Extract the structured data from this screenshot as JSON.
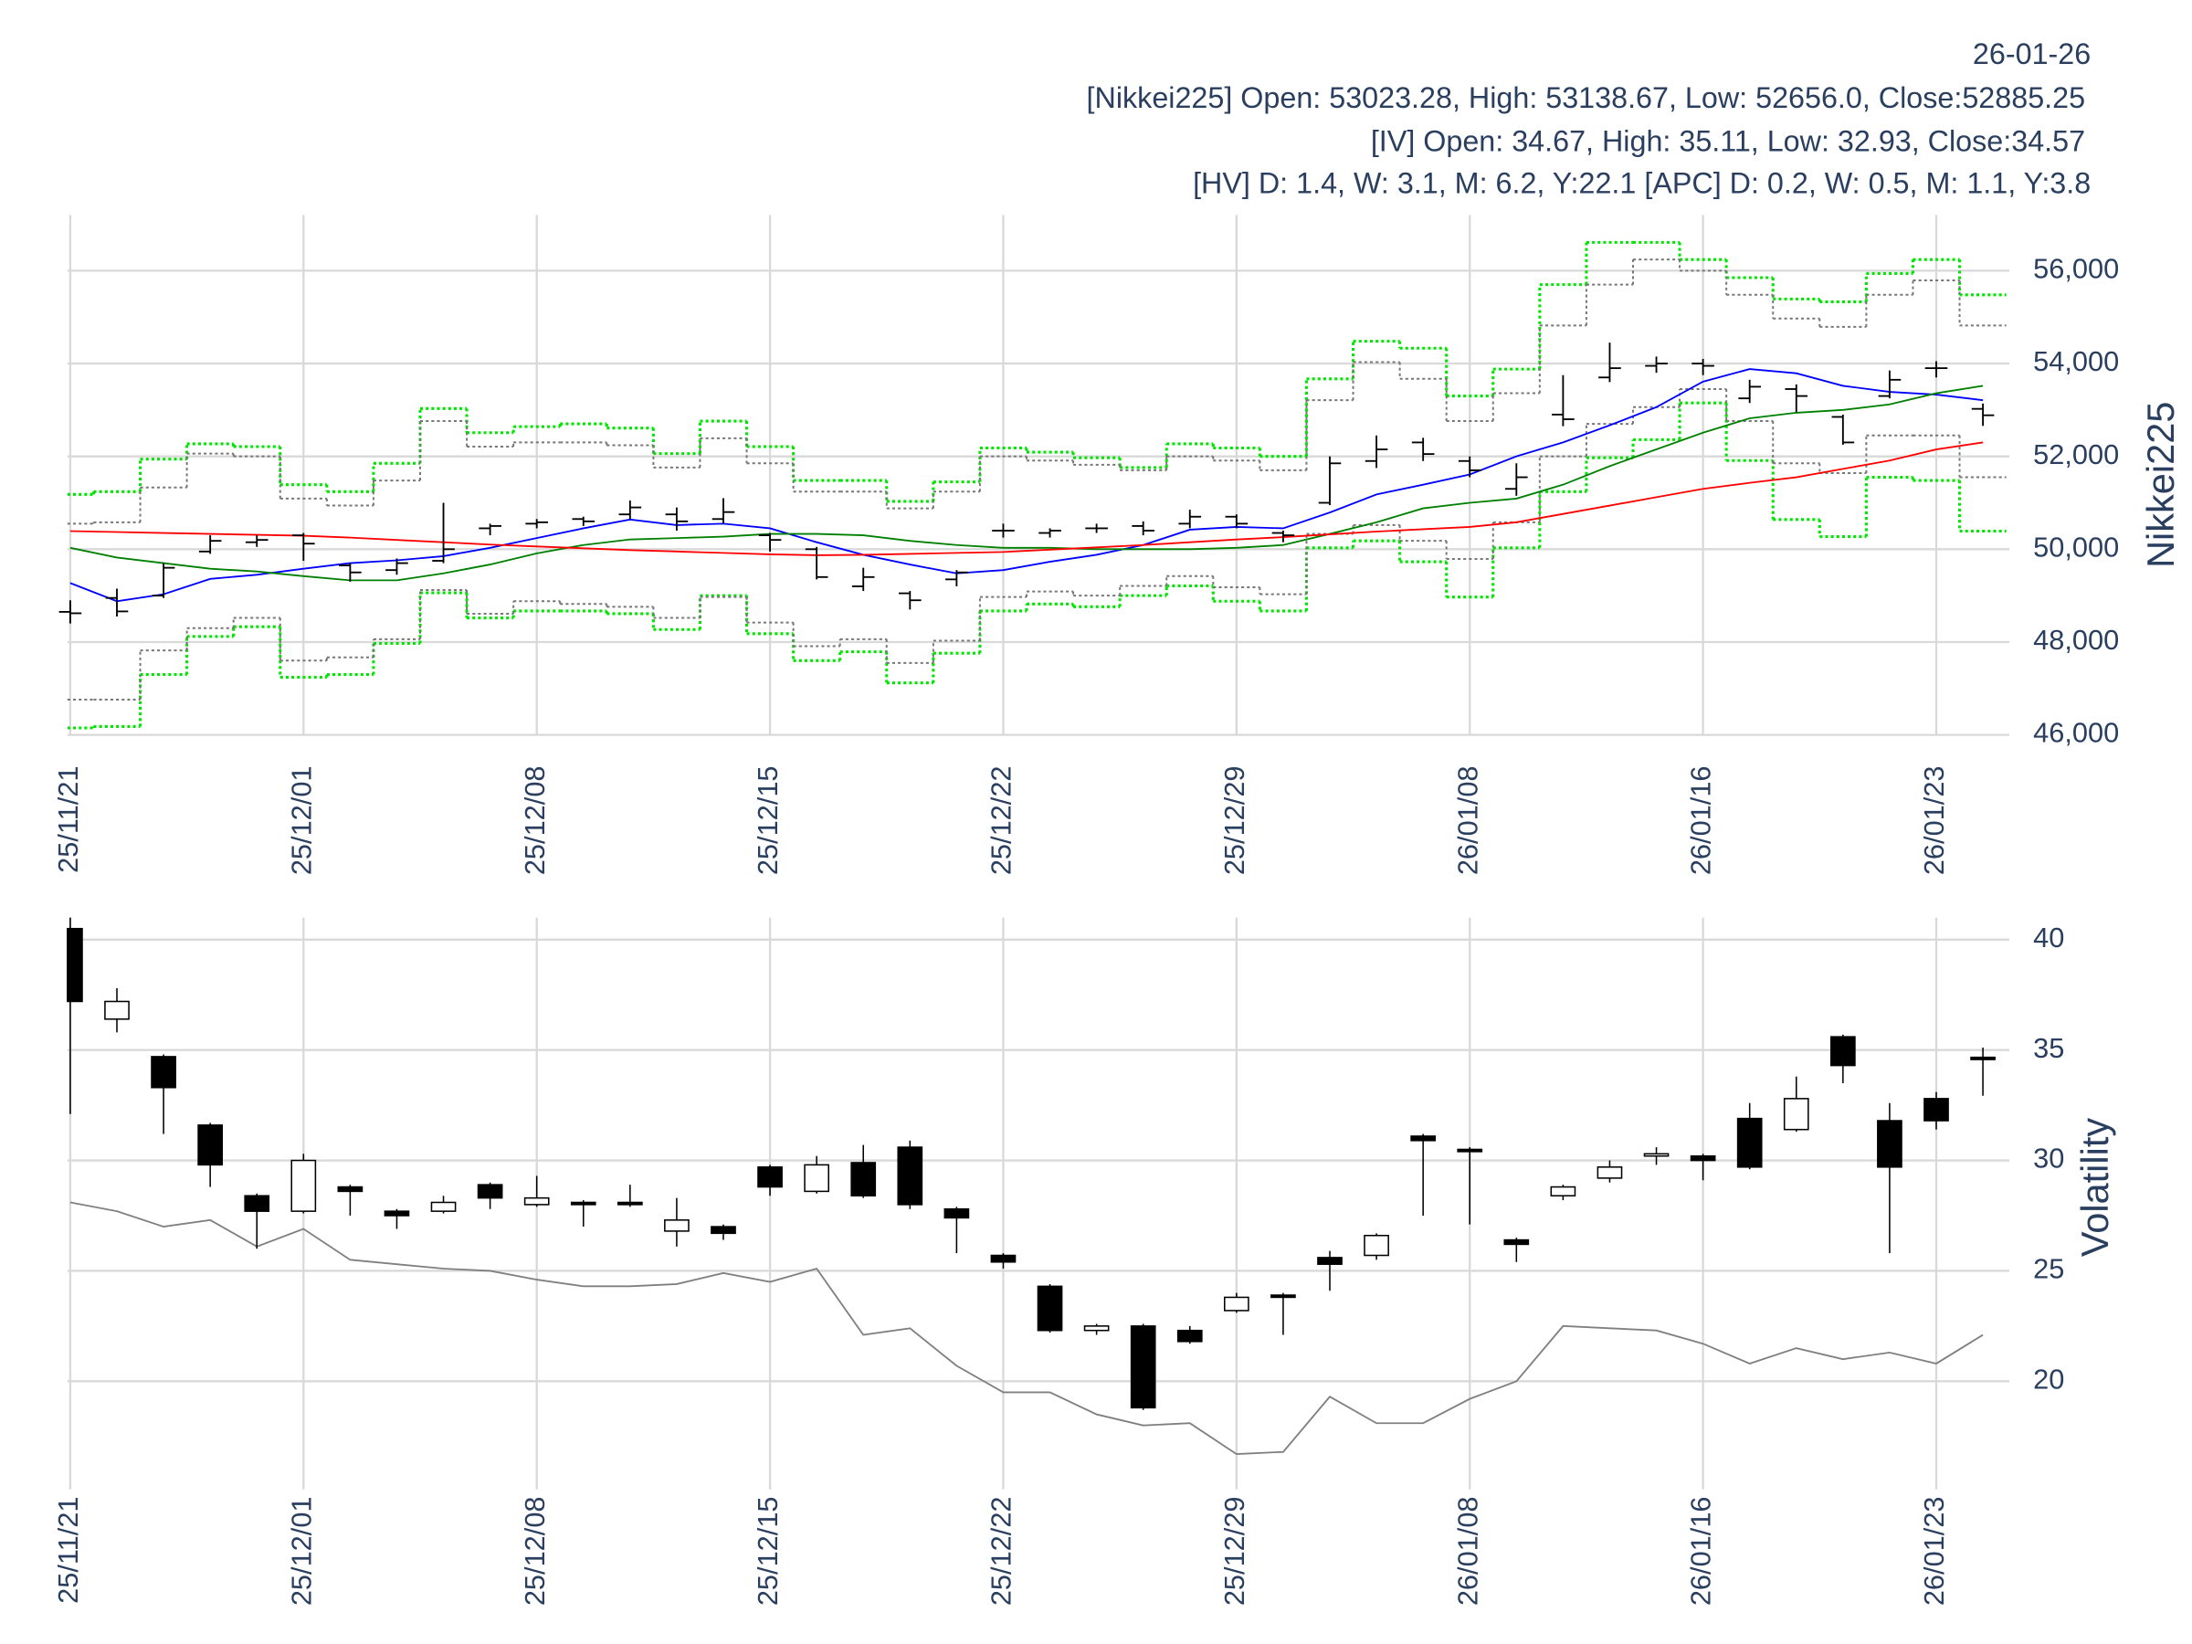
{
  "chart_data": [
    {
      "type": "ohlc",
      "title": "26-01-26",
      "annotations": [
        "[Nikkei225] Open: 53023.28, High: 53138.67, Low: 52656.0, Close:52885.25",
        "[IV] Open: 34.67, High: 35.11, Low: 32.93, Close:34.57",
        "[HV] D: 1.4, W: 3.1, M: 6.2, Y:22.1 [APC] D: 0.2, W: 0.5, M: 1.1, Y:3.8"
      ],
      "y_label": "Nikkei225",
      "categories": [
        "25/11/21",
        null,
        null,
        null,
        null,
        "25/12/01",
        null,
        null,
        null,
        null,
        "25/12/08",
        null,
        null,
        null,
        null,
        "25/12/15",
        null,
        null,
        null,
        null,
        "25/12/22",
        null,
        null,
        null,
        null,
        "25/12/29",
        null,
        null,
        null,
        null,
        "26/01/08",
        null,
        null,
        null,
        null,
        "26/01/16",
        null,
        null,
        null,
        null,
        "26/01/23",
        null
      ],
      "open": [
        48650,
        48950,
        49000,
        49950,
        50150,
        50300,
        49650,
        49550,
        49750,
        50450,
        50550,
        50650,
        50750,
        50750,
        50650,
        50300,
        50000,
        49200,
        49050,
        49350,
        50400,
        50350,
        50450,
        50500,
        50550,
        50700,
        50350,
        51000,
        51900,
        52300,
        51900,
        51300,
        52900,
        53700,
        53950,
        54000,
        53250,
        53450,
        52850,
        53300,
        53900,
        53023.28
      ],
      "high": [
        48900,
        49150,
        49700,
        50300,
        50300,
        50350,
        49700,
        49800,
        51000,
        50550,
        50650,
        50700,
        51050,
        50900,
        51100,
        50350,
        50050,
        49600,
        49100,
        49550,
        50550,
        50450,
        50550,
        50600,
        50850,
        50750,
        50400,
        52000,
        52450,
        52400,
        52000,
        51850,
        53750,
        54450,
        54150,
        54100,
        53650,
        53550,
        52900,
        53850,
        54050,
        53138.67
      ],
      "low": [
        48400,
        48550,
        48950,
        49900,
        50050,
        49750,
        49300,
        49450,
        49700,
        50300,
        50450,
        50500,
        50650,
        50400,
        50550,
        49950,
        49350,
        49100,
        48700,
        49200,
        50250,
        50250,
        50350,
        50300,
        50450,
        50450,
        50150,
        50950,
        51750,
        51900,
        51550,
        51150,
        52650,
        53600,
        53800,
        53750,
        53150,
        52950,
        52250,
        53250,
        53700,
        52656
      ],
      "close": [
        48620,
        48660,
        49600,
        50180,
        50200,
        50120,
        49500,
        49700,
        50000,
        50500,
        50580,
        50600,
        50900,
        50600,
        50800,
        50200,
        49400,
        49400,
        48900,
        49500,
        50400,
        50400,
        50450,
        50400,
        50700,
        50550,
        50300,
        51850,
        52150,
        52050,
        51700,
        51550,
        52800,
        53900,
        54000,
        53950,
        53500,
        53300,
        52300,
        53650,
        53900,
        52885.25
      ],
      "color": "#000000",
      "lines": [
        {
          "color": "#0000ff",
          "values": [
            49270,
            48880,
            49030,
            49360,
            49450,
            49580,
            49700,
            49760,
            49850,
            50030,
            50240,
            50450,
            50640,
            50520,
            50550,
            50450,
            50150,
            49880,
            49670,
            49480,
            49550,
            49730,
            49880,
            50090,
            50420,
            50480,
            50450,
            50790,
            51180,
            51390,
            51610,
            52000,
            52300,
            52670,
            53060,
            53610,
            53880,
            53790,
            53520,
            53390,
            53330,
            53210
          ]
        },
        {
          "color": "#008000",
          "values": [
            50030,
            49820,
            49700,
            49580,
            49520,
            49420,
            49330,
            49330,
            49480,
            49670,
            49910,
            50090,
            50210,
            50240,
            50270,
            50330,
            50330,
            50300,
            50180,
            50090,
            50030,
            50030,
            50000,
            50000,
            50000,
            50030,
            50090,
            50330,
            50580,
            50880,
            51000,
            51090,
            51390,
            51790,
            52150,
            52510,
            52820,
            52940,
            53000,
            53120,
            53360,
            53520
          ]
        },
        {
          "color": "#ff0000",
          "values": [
            50390,
            50370,
            50350,
            50330,
            50310,
            50290,
            50250,
            50200,
            50150,
            50100,
            50060,
            50020,
            49980,
            49950,
            49920,
            49890,
            49870,
            49880,
            49900,
            49920,
            49940,
            49990,
            50040,
            50090,
            50150,
            50210,
            50260,
            50320,
            50380,
            50430,
            50480,
            50580,
            50760,
            50940,
            51120,
            51300,
            51430,
            51550,
            51730,
            51910,
            52150,
            52300
          ]
        }
      ],
      "bands": [
        {
          "color": "#00e600",
          "values": [
            51180,
            51240,
            51940,
            52270,
            52210,
            51390,
            51240,
            51850,
            53030,
            52510,
            52640,
            52700,
            52610,
            52060,
            52760,
            52210,
            51480,
            51480,
            51030,
            51450,
            52180,
            52090,
            51970,
            51760,
            52270,
            52180,
            52000,
            53670,
            54480,
            54330,
            53300,
            53880,
            55700,
            56610,
            56610,
            56240,
            55850,
            55390,
            55330,
            55940,
            56240,
            55480
          ]
        },
        {
          "color": "#00e600",
          "values": [
            46150,
            46180,
            47300,
            48120,
            48330,
            47240,
            47300,
            47970,
            49060,
            48520,
            48670,
            48670,
            48610,
            48270,
            49000,
            48180,
            47600,
            47790,
            47120,
            47760,
            48670,
            48820,
            48760,
            49000,
            49210,
            48880,
            48670,
            50030,
            50180,
            49730,
            48970,
            50030,
            51240,
            51970,
            52360,
            53150,
            51910,
            50640,
            50270,
            51550,
            51480,
            50390
          ]
        },
        {
          "color": "#777777",
          "values": [
            50550,
            50580,
            51330,
            52060,
            52000,
            51090,
            50940,
            51480,
            52760,
            52210,
            52300,
            52300,
            52240,
            51760,
            52390,
            51850,
            51240,
            51240,
            50880,
            51240,
            52000,
            51910,
            51820,
            51700,
            52000,
            51910,
            51700,
            53210,
            54030,
            53670,
            52760,
            53360,
            54820,
            55700,
            56240,
            56000,
            55480,
            54970,
            54790,
            55480,
            55790,
            54820
          ]
        },
        {
          "color": "#777777",
          "values": [
            46760,
            46760,
            47820,
            48300,
            48520,
            47600,
            47670,
            48060,
            49120,
            48610,
            48880,
            48820,
            48760,
            48520,
            48970,
            48420,
            47910,
            48060,
            47550,
            48030,
            48970,
            49090,
            49000,
            49210,
            49420,
            49180,
            49030,
            50330,
            50520,
            50180,
            49790,
            50580,
            52000,
            52700,
            53060,
            53450,
            52760,
            51850,
            51640,
            52450,
            52450,
            51550
          ]
        }
      ],
      "ylim": [
        46000,
        57200
      ],
      "yticks": [
        {
          "value": 46000,
          "label": "46,000"
        },
        {
          "value": 48000,
          "label": "48,000"
        },
        {
          "value": 50000,
          "label": "50,000"
        },
        {
          "value": 52000,
          "label": "52,000"
        },
        {
          "value": 54000,
          "label": "54,000"
        },
        {
          "value": 56000,
          "label": "56,000"
        }
      ],
      "grid": true
    },
    {
      "type": "candlestick",
      "y_label": "Volatility",
      "categories": [
        "25/11/21",
        null,
        null,
        null,
        null,
        "25/12/01",
        null,
        null,
        null,
        null,
        "25/12/08",
        null,
        null,
        null,
        null,
        "25/12/15",
        null,
        null,
        null,
        null,
        "25/12/22",
        null,
        null,
        null,
        null,
        "25/12/29",
        null,
        null,
        null,
        null,
        "26/01/08",
        null,
        null,
        null,
        null,
        "26/01/16",
        null,
        null,
        null,
        null,
        "26/01/23",
        null
      ],
      "open": [
        40.5,
        36.4,
        34.7,
        31.6,
        28.4,
        27.7,
        28.8,
        27.7,
        27.7,
        28.9,
        28.0,
        28.1,
        28.1,
        26.8,
        27.0,
        29.7,
        28.6,
        29.9,
        30.6,
        27.8,
        25.7,
        24.3,
        22.3,
        22.5,
        22.3,
        23.2,
        23.9,
        25.6,
        25.7,
        31.1,
        30.5,
        26.4,
        28.4,
        29.2,
        30.2,
        30.2,
        31.9,
        31.4,
        35.6,
        31.8,
        32.8,
        34.67
      ],
      "high": [
        41.0,
        37.8,
        34.8,
        31.7,
        28.5,
        30.3,
        28.9,
        27.8,
        28.4,
        29.0,
        29.3,
        28.2,
        28.9,
        28.3,
        27.1,
        29.8,
        30.2,
        30.7,
        30.9,
        27.9,
        25.8,
        24.4,
        22.6,
        22.6,
        22.5,
        24.0,
        24.0,
        25.9,
        26.7,
        31.2,
        30.6,
        26.5,
        28.9,
        30.0,
        30.6,
        30.3,
        32.6,
        33.8,
        35.7,
        32.6,
        33.1,
        35.11
      ],
      "low": [
        32.1,
        35.8,
        31.2,
        28.8,
        26.0,
        27.6,
        27.5,
        26.9,
        27.6,
        27.8,
        27.9,
        27.0,
        27.9,
        26.1,
        26.4,
        28.4,
        28.5,
        28.3,
        27.8,
        25.8,
        25.1,
        22.2,
        22.1,
        18.7,
        21.7,
        23.1,
        22.1,
        24.1,
        25.5,
        27.5,
        27.1,
        25.4,
        28.2,
        29.0,
        29.8,
        29.1,
        29.6,
        31.3,
        33.5,
        25.8,
        31.4,
        32.93
      ],
      "close": [
        37.2,
        37.2,
        33.3,
        29.8,
        27.7,
        30.0,
        28.6,
        27.5,
        28.1,
        28.3,
        28.3,
        28.0,
        28.0,
        27.3,
        26.7,
        28.8,
        29.8,
        28.4,
        28.0,
        27.4,
        25.4,
        22.3,
        22.5,
        18.8,
        21.8,
        23.8,
        23.8,
        25.3,
        26.6,
        30.9,
        30.4,
        26.2,
        28.8,
        29.7,
        30.3,
        30.0,
        29.7,
        32.8,
        34.3,
        29.7,
        31.8,
        34.57
      ],
      "up_color": "#ffffff",
      "down_color": "#000000",
      "series": [
        {
          "color": "#808080",
          "values": [
            28.1,
            27.7,
            27.0,
            27.3,
            26.1,
            26.9,
            25.5,
            25.3,
            25.1,
            25.0,
            24.6,
            24.3,
            24.3,
            24.4,
            24.9,
            24.5,
            25.1,
            22.1,
            22.4,
            20.7,
            19.5,
            19.5,
            18.5,
            18.0,
            18.1,
            16.7,
            16.8,
            19.3,
            18.1,
            18.1,
            19.2,
            20.0,
            22.5,
            22.4,
            22.3,
            21.7,
            20.8,
            21.5,
            21.0,
            21.3,
            20.8,
            22.1
          ]
        }
      ],
      "ylim": [
        15.1,
        41.0
      ],
      "yticks": [
        20,
        25,
        30,
        35,
        40
      ],
      "grid": true
    }
  ]
}
